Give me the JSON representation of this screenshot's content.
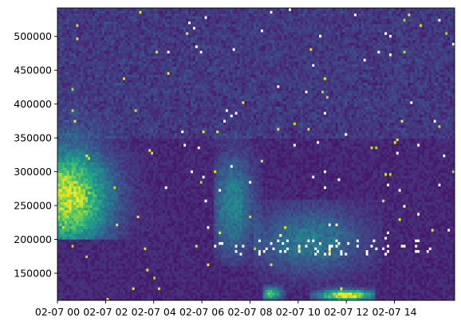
{
  "chart_data": {
    "type": "heatmap",
    "title": "",
    "xlabel": "",
    "ylabel": "",
    "colormap": "viridis",
    "colormap_stops": [
      "#440154",
      "#472c7a",
      "#3b518b",
      "#2c718e",
      "#21908d",
      "#27ad81",
      "#5cc863",
      "#aadc32",
      "#fde725"
    ],
    "missing_color": "#ffffff",
    "grid": false,
    "x_tick_labels": [
      "02-07 00",
      "02-07 02",
      "02-07 04",
      "02-07 06",
      "02-07 08",
      "02-07 10",
      "02-07 12",
      "02-07 14"
    ],
    "x_tick_hours": [
      0,
      2,
      4,
      6,
      8,
      10,
      12,
      14
    ],
    "x_range_hours": [
      0,
      16.5
    ],
    "y_tick_labels": [
      "150000",
      "200000",
      "250000",
      "300000",
      "350000",
      "400000",
      "450000",
      "500000"
    ],
    "y_ticks": [
      150000,
      200000,
      250000,
      300000,
      350000,
      400000,
      450000,
      500000
    ],
    "ylim": [
      110000,
      542000
    ],
    "columns": 170,
    "rows": 110,
    "intensity_model": {
      "background": 0.06,
      "noise": 0.1,
      "features": [
        {
          "hours": [
            0,
            4.2
          ],
          "altitude": [
            200000,
            400000
          ],
          "peak_hour": 0.4,
          "peak_altitude": 262000,
          "peak": 0.85
        },
        {
          "hours": [
            6.5,
            8.5
          ],
          "altitude": [
            160000,
            360000
          ],
          "peak_hour": 7.3,
          "peak_altitude": 250000,
          "peak": 0.38
        },
        {
          "hours": [
            8.2,
            13.5
          ],
          "altitude": [
            130000,
            260000
          ],
          "peak_hour": 10.5,
          "peak_altitude": 200000,
          "peak": 0.32
        },
        {
          "hours": [
            10.5,
            13.2
          ],
          "altitude": [
            110000,
            132000
          ],
          "peak_hour": 12.0,
          "peak_altitude": 118000,
          "peak": 0.95
        },
        {
          "hours": [
            8.5,
            9.5
          ],
          "altitude": [
            110000,
            135000
          ],
          "peak_hour": 8.9,
          "peak_altitude": 120000,
          "peak": 0.7
        }
      ],
      "missing_band": {
        "hours": [
          6.5,
          15.5
        ],
        "altitude": [
          175000,
          200000
        ]
      }
    }
  }
}
